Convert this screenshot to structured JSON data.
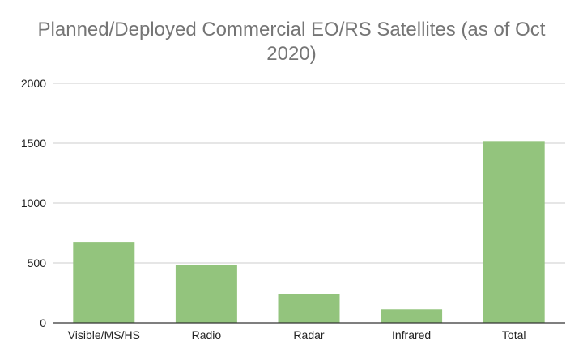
{
  "chart_data": {
    "type": "bar",
    "title": "Planned/Deployed Commercial EO/RS Satellites (as of Oct 2020)",
    "xlabel": "",
    "ylabel": "",
    "categories": [
      "Visible/MS/HS",
      "Radio",
      "Radar",
      "Infrared",
      "Total"
    ],
    "series": [
      {
        "values": [
          675,
          480,
          243,
          113,
          1518
        ]
      }
    ],
    "ylim": [
      0,
      2000
    ],
    "yticks": [
      0,
      500,
      1000,
      1500,
      2000
    ],
    "grid": true,
    "legend": "none",
    "bar_color": "#93c47d",
    "gridline_color": "#cccccc"
  }
}
